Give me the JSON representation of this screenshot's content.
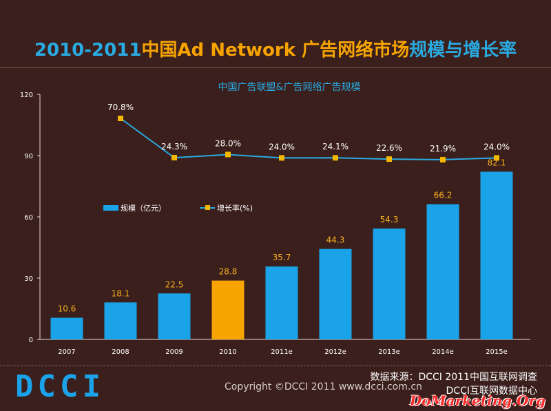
{
  "header": {
    "title_part1": "2010-2011",
    "title_part2": "中国Ad Network 广告网络市场",
    "title_part3": "规模与增长率"
  },
  "chart_data": {
    "type": "bar",
    "title": "中国广告联盟&广告网络广告规模",
    "categories": [
      "2007",
      "2008",
      "2009",
      "2010",
      "2011e",
      "2012e",
      "2013e",
      "2014e",
      "2015e"
    ],
    "series": [
      {
        "name": "规模（亿元）",
        "type": "bar",
        "values": [
          10.6,
          18.1,
          22.5,
          28.8,
          35.7,
          44.3,
          54.3,
          66.2,
          82.1
        ],
        "labels": [
          "10.6",
          "18.1",
          "22.5",
          "28.8",
          "35.7",
          "44.3",
          "54.3",
          "66.2",
          "82.1"
        ],
        "color": "#1aa3e8",
        "highlight_color": "#f7a400",
        "highlight_category": "2010"
      },
      {
        "name": "增长率(%)",
        "type": "line",
        "values": [
          null,
          70.8,
          24.3,
          28.0,
          24.0,
          24.1,
          22.6,
          21.9,
          24.0
        ],
        "labels": [
          "",
          "70.8%",
          "24.3%",
          "28.0%",
          "24.0%",
          "24.1%",
          "22.6%",
          "21.9%",
          "24.0%"
        ],
        "color": "#29abe2",
        "marker_color": "#f5b700"
      }
    ],
    "yticks": [
      "0",
      "30",
      "60",
      "90",
      "120"
    ],
    "ylim": [
      0,
      120
    ],
    "legend_position": "upper-left"
  },
  "legend": {
    "bar_label": "规模（亿元）",
    "line_label": "增长率(%)"
  },
  "footer": {
    "logo_text": "DCCI",
    "copyright": "Copyright ©DCCI 2011    www.dcci.com.cn",
    "source_line1": "数据来源：DCCI 2011中国互联网调查",
    "source_line2": "DCCI互联网数据中心",
    "watermark": "DoMarketing.Org"
  },
  "colors": {
    "background": "#3a1f1c",
    "accent_blue": "#1aa3e8",
    "accent_orange": "#f7a400"
  }
}
